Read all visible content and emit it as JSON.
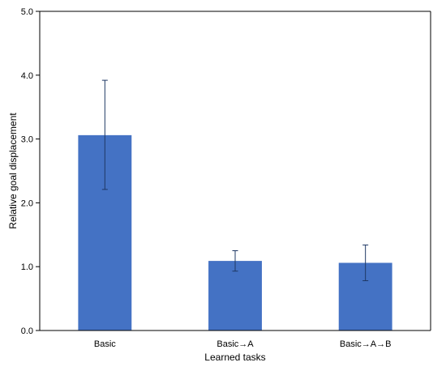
{
  "chart_data": {
    "type": "bar",
    "title": "",
    "xlabel": "Learned tasks",
    "ylabel": "Relative goal displacement",
    "categories": [
      "Basic",
      "Basic→A",
      "Basic→A→B"
    ],
    "values": [
      3.06,
      1.09,
      1.06
    ],
    "error_low": [
      2.21,
      0.93,
      0.78
    ],
    "error_high": [
      3.92,
      1.25,
      1.34
    ],
    "ylim": [
      0,
      5
    ],
    "yticks": [
      "0.0",
      "1.0",
      "2.0",
      "3.0",
      "4.0",
      "5.0"
    ],
    "grid": false,
    "legend": "none",
    "bar_color": "#4472C4",
    "error_color": "#1F3864"
  }
}
